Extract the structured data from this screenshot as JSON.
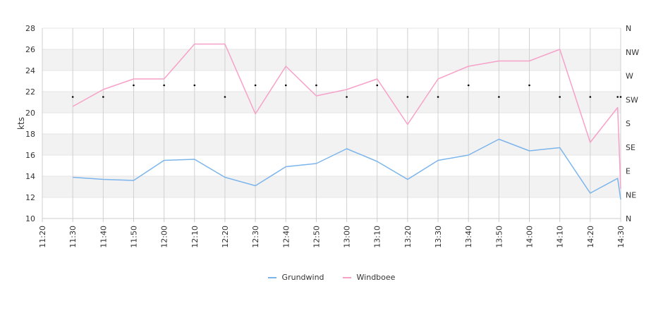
{
  "chart_data": {
    "type": "line",
    "ylabel": "kts",
    "ylim": [
      10,
      28
    ],
    "y_ticks": [
      "10",
      "12",
      "14",
      "16",
      "18",
      "20",
      "22",
      "24",
      "26",
      "28"
    ],
    "x_ticks": [
      "11:20",
      "11:30",
      "11:40",
      "11:50",
      "12:00",
      "12:10",
      "12:20",
      "12:30",
      "12:40",
      "12:50",
      "13:00",
      "13:10",
      "13:20",
      "13:30",
      "13:40",
      "13:50",
      "14:00",
      "14:10",
      "14:20",
      "14:30"
    ],
    "xlim": [
      "11:20",
      "14:30"
    ],
    "right_axis": {
      "ticks": [
        "N",
        "NW",
        "W",
        "SW",
        "S",
        "SE",
        "E",
        "NE",
        "N"
      ]
    },
    "grid": true,
    "legend_position": "bottom",
    "series": [
      {
        "name": "Grundwind",
        "color": "#7cb5ec",
        "points": [
          [
            "11:30",
            13.9
          ],
          [
            "11:40",
            13.7
          ],
          [
            "11:50",
            13.6
          ],
          [
            "12:00",
            15.5
          ],
          [
            "12:10",
            15.6
          ],
          [
            "12:20",
            13.9
          ],
          [
            "12:30",
            13.1
          ],
          [
            "12:40",
            14.9
          ],
          [
            "12:50",
            15.2
          ],
          [
            "13:00",
            16.6
          ],
          [
            "13:10",
            15.4
          ],
          [
            "13:20",
            13.7
          ],
          [
            "13:30",
            15.5
          ],
          [
            "13:40",
            16.0
          ],
          [
            "13:50",
            17.5
          ],
          [
            "14:00",
            16.4
          ],
          [
            "14:10",
            16.7
          ],
          [
            "14:20",
            12.4
          ],
          [
            "14:29",
            13.8
          ],
          [
            "14:30",
            11.8
          ]
        ]
      },
      {
        "name": "Windboee",
        "color": "#f7a1c8",
        "points": [
          [
            "11:30",
            20.6
          ],
          [
            "11:40",
            22.2
          ],
          [
            "11:50",
            23.2
          ],
          [
            "12:00",
            23.2
          ],
          [
            "12:10",
            26.5
          ],
          [
            "12:20",
            26.5
          ],
          [
            "12:30",
            19.9
          ],
          [
            "12:40",
            24.4
          ],
          [
            "12:50",
            21.6
          ],
          [
            "13:00",
            22.2
          ],
          [
            "13:10",
            23.2
          ],
          [
            "13:20",
            18.9
          ],
          [
            "13:30",
            23.2
          ],
          [
            "13:40",
            24.4
          ],
          [
            "13:50",
            24.9
          ],
          [
            "14:00",
            24.9
          ],
          [
            "14:10",
            26.0
          ],
          [
            "14:20",
            17.2
          ],
          [
            "14:29",
            20.5
          ],
          [
            "14:30",
            12.8
          ]
        ]
      }
    ],
    "direction_markers": {
      "color": "#000000",
      "points": [
        [
          "11:30",
          21.5
        ],
        [
          "11:40",
          21.5
        ],
        [
          "11:50",
          22.6
        ],
        [
          "12:00",
          22.6
        ],
        [
          "12:10",
          22.6
        ],
        [
          "12:20",
          21.5
        ],
        [
          "12:30",
          22.6
        ],
        [
          "12:40",
          22.6
        ],
        [
          "12:50",
          22.6
        ],
        [
          "13:00",
          21.5
        ],
        [
          "13:10",
          22.6
        ],
        [
          "13:20",
          21.5
        ],
        [
          "13:30",
          21.5
        ],
        [
          "13:40",
          22.6
        ],
        [
          "13:50",
          21.5
        ],
        [
          "14:00",
          22.6
        ],
        [
          "14:10",
          21.5
        ],
        [
          "14:20",
          21.5
        ],
        [
          "14:29",
          21.5
        ],
        [
          "14:30",
          21.5
        ]
      ]
    }
  }
}
